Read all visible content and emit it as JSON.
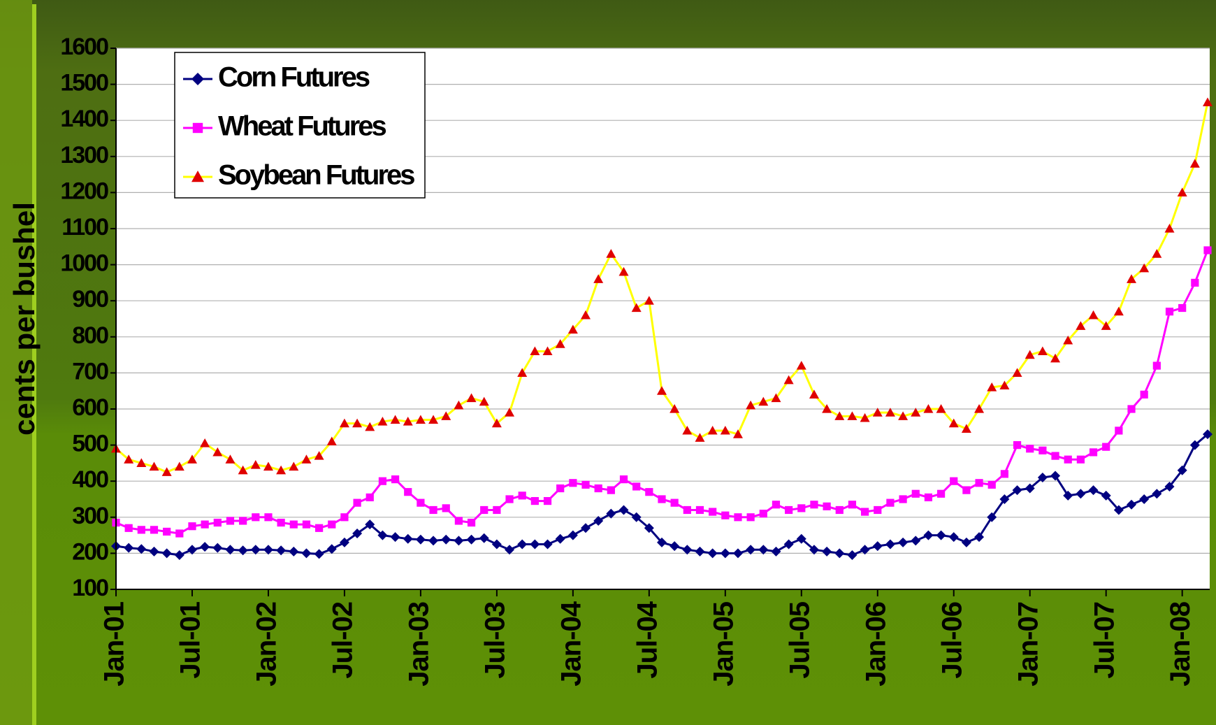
{
  "chart_data": {
    "type": "line",
    "y_label": "cents per bushel",
    "x": [
      "Jan-01",
      "Feb-01",
      "Mar-01",
      "Apr-01",
      "May-01",
      "Jun-01",
      "Jul-01",
      "Aug-01",
      "Sep-01",
      "Oct-01",
      "Nov-01",
      "Dec-01",
      "Jan-02",
      "Feb-02",
      "Mar-02",
      "Apr-02",
      "May-02",
      "Jun-02",
      "Jul-02",
      "Aug-02",
      "Sep-02",
      "Oct-02",
      "Nov-02",
      "Dec-02",
      "Jan-03",
      "Feb-03",
      "Mar-03",
      "Apr-03",
      "May-03",
      "Jun-03",
      "Jul-03",
      "Aug-03",
      "Sep-03",
      "Oct-03",
      "Nov-03",
      "Dec-03",
      "Jan-04",
      "Feb-04",
      "Mar-04",
      "Apr-04",
      "May-04",
      "Jun-04",
      "Jul-04",
      "Aug-04",
      "Sep-04",
      "Oct-04",
      "Nov-04",
      "Dec-04",
      "Jan-05",
      "Feb-05",
      "Mar-05",
      "Apr-05",
      "May-05",
      "Jun-05",
      "Jul-05",
      "Aug-05",
      "Sep-05",
      "Oct-05",
      "Nov-05",
      "Dec-05",
      "Jan-06",
      "Feb-06",
      "Mar-06",
      "Apr-06",
      "May-06",
      "Jun-06",
      "Jul-06",
      "Aug-06",
      "Sep-06",
      "Oct-06",
      "Nov-06",
      "Dec-06",
      "Jan-07",
      "Feb-07",
      "Mar-07",
      "Apr-07",
      "May-07",
      "Jun-07",
      "Jul-07",
      "Aug-07",
      "Sep-07",
      "Oct-07",
      "Nov-07",
      "Dec-07",
      "Jan-08",
      "Feb-08",
      "Mar-08"
    ],
    "xticks": [
      "Jan-01",
      "Jul-01",
      "Jan-02",
      "Jul-02",
      "Jan-03",
      "Jul-03",
      "Jan-04",
      "Jul-04",
      "Jan-05",
      "Jul-05",
      "Jan-06",
      "Jul-06",
      "Jan-07",
      "Jul-07",
      "Jan-08"
    ],
    "series": [
      {
        "name": "Corn Futures",
        "color": "#000080",
        "marker": "diamond",
        "values": [
          220,
          215,
          212,
          205,
          200,
          195,
          210,
          218,
          215,
          210,
          208,
          210,
          210,
          208,
          205,
          200,
          198,
          212,
          230,
          255,
          280,
          250,
          245,
          240,
          238,
          235,
          238,
          235,
          238,
          242,
          225,
          210,
          225,
          225,
          225,
          240,
          250,
          270,
          290,
          310,
          320,
          300,
          270,
          230,
          220,
          210,
          205,
          200,
          200,
          200,
          210,
          210,
          205,
          225,
          240,
          210,
          205,
          200,
          195,
          210,
          220,
          225,
          230,
          235,
          250,
          250,
          245,
          230,
          245,
          300,
          350,
          375,
          380,
          410,
          415,
          360,
          365,
          375,
          360,
          320,
          335,
          350,
          365,
          385,
          430,
          500,
          530
        ]
      },
      {
        "name": "Wheat Futures",
        "color": "#ff00ff",
        "marker": "square",
        "values": [
          285,
          270,
          265,
          265,
          260,
          255,
          275,
          280,
          285,
          290,
          290,
          300,
          300,
          285,
          280,
          280,
          270,
          280,
          300,
          340,
          355,
          400,
          405,
          370,
          340,
          320,
          325,
          290,
          285,
          320,
          320,
          350,
          360,
          345,
          345,
          380,
          395,
          390,
          380,
          375,
          405,
          385,
          370,
          350,
          340,
          320,
          320,
          315,
          305,
          300,
          300,
          310,
          335,
          320,
          325,
          335,
          330,
          320,
          335,
          315,
          320,
          340,
          350,
          365,
          355,
          365,
          400,
          375,
          395,
          390,
          420,
          500,
          490,
          485,
          470,
          460,
          460,
          480,
          495,
          540,
          600,
          640,
          720,
          870,
          880,
          950,
          1040
        ]
      },
      {
        "name": "Soybean Futures",
        "color": "#ffff00",
        "marker": "triangle",
        "marker_color": "#e00000",
        "values": [
          490,
          460,
          450,
          440,
          425,
          440,
          460,
          505,
          480,
          460,
          430,
          445,
          440,
          430,
          440,
          460,
          470,
          510,
          560,
          560,
          550,
          565,
          570,
          565,
          570,
          570,
          580,
          610,
          630,
          620,
          560,
          590,
          700,
          760,
          760,
          780,
          820,
          860,
          960,
          1030,
          980,
          880,
          900,
          650,
          600,
          540,
          520,
          540,
          540,
          530,
          610,
          620,
          630,
          680,
          720,
          640,
          600,
          580,
          580,
          575,
          590,
          590,
          580,
          590,
          600,
          600,
          560,
          545,
          600,
          660,
          665,
          700,
          750,
          760,
          740,
          790,
          830,
          860,
          830,
          870,
          960,
          990,
          1030,
          1100,
          1200,
          1280,
          1450
        ]
      }
    ],
    "ylim": [
      100,
      1600
    ],
    "yticks": [
      100,
      200,
      300,
      400,
      500,
      600,
      700,
      800,
      900,
      1000,
      1100,
      1200,
      1300,
      1400,
      1500,
      1600
    ],
    "grid": true,
    "legend": "upper left"
  }
}
